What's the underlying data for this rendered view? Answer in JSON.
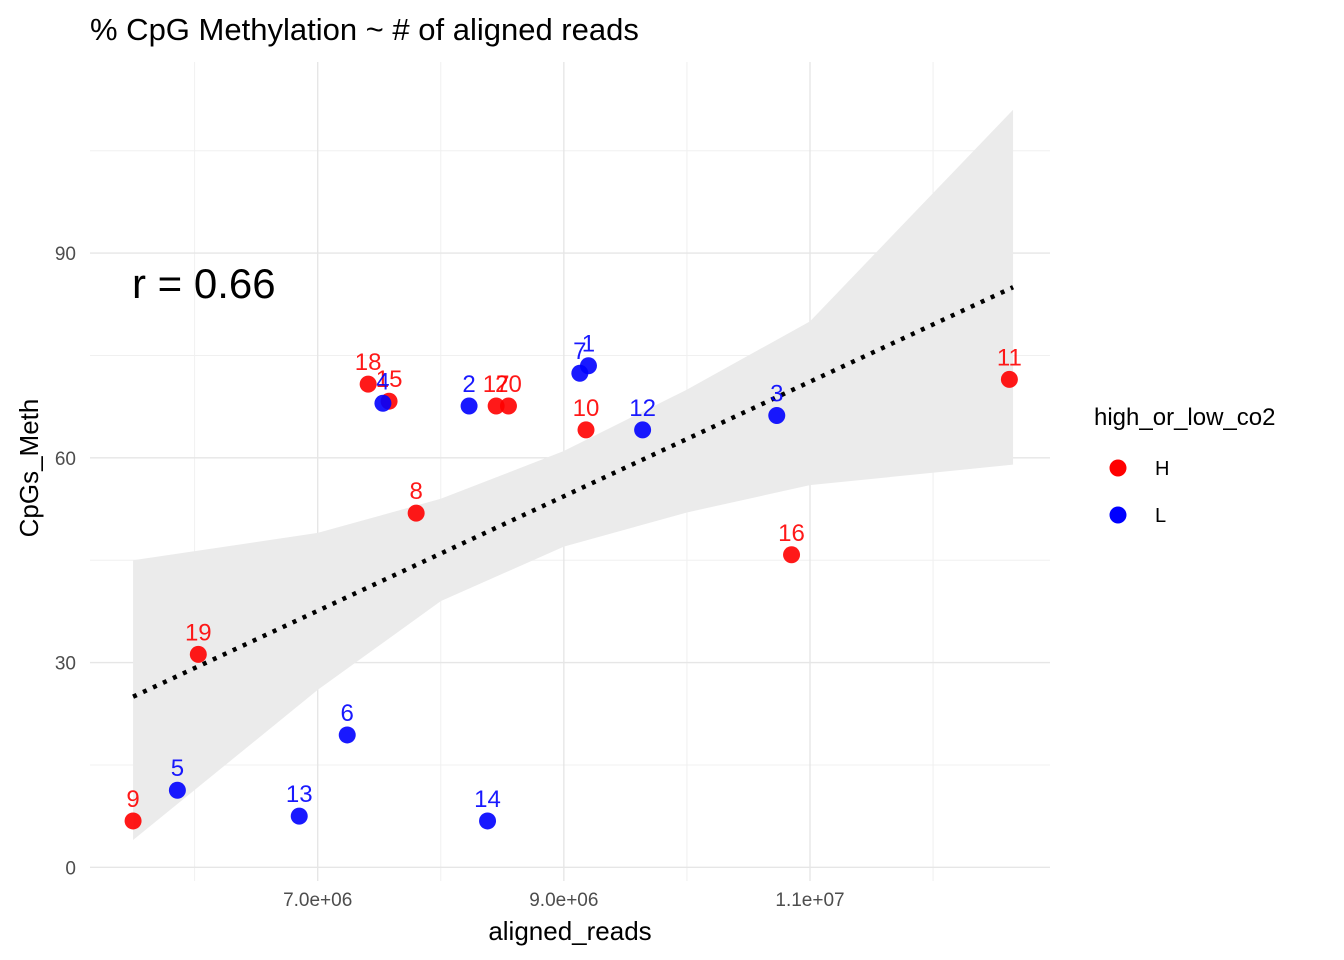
{
  "chart_data": {
    "type": "scatter",
    "title": "% CpG Methylation ~ # of aligned reads",
    "xlabel": "aligned_reads",
    "ylabel": "CpGs_Meth",
    "xlim": [
      5150000,
      12950000
    ],
    "ylim": [
      -2,
      118
    ],
    "x_ticks": [
      7000000,
      9000000,
      11000000
    ],
    "x_tick_labels": [
      "7.0e+06",
      "9.0e+06",
      "1.1e+07"
    ],
    "x_minor_ticks": [
      6000000,
      8000000,
      10000000,
      12000000
    ],
    "y_ticks": [
      0,
      30,
      60,
      90
    ],
    "y_tick_labels": [
      "0",
      "30",
      "60",
      "90"
    ],
    "y_minor_ticks": [
      15,
      45,
      75,
      105
    ],
    "grid": true,
    "annotation": "r = 0.66",
    "legend": {
      "title": "high_or_low_co2",
      "placement": "right",
      "entries": [
        {
          "label": "H",
          "color": "#ff0000"
        },
        {
          "label": "L",
          "color": "#0000ff"
        }
      ]
    },
    "regression": {
      "style": "dotted",
      "color": "#000000",
      "x": [
        5500000,
        12650000
      ],
      "y": [
        25,
        85
      ],
      "ci_band": {
        "color": "#ebebeb",
        "x": [
          5500000,
          7000000,
          8000000,
          9000000,
          10000000,
          11000000,
          12650000
        ],
        "upper": [
          45,
          49,
          54,
          61,
          70,
          80,
          111
        ],
        "lower": [
          4,
          26,
          39,
          47,
          52,
          56,
          59
        ]
      }
    },
    "series": [
      {
        "name": "H",
        "color": "#ff0000",
        "points": [
          {
            "label": "18",
            "x": 7410000,
            "y": 70.8
          },
          {
            "label": "15",
            "x": 7580000,
            "y": 68.3
          },
          {
            "label": "17",
            "x": 8450000,
            "y": 67.6
          },
          {
            "label": "20",
            "x": 8550000,
            "y": 67.6
          },
          {
            "label": "10",
            "x": 9180000,
            "y": 64.1
          },
          {
            "label": "11",
            "x": 12620000,
            "y": 71.5
          },
          {
            "label": "16",
            "x": 10850000,
            "y": 45.8
          },
          {
            "label": "8",
            "x": 7800000,
            "y": 51.9
          },
          {
            "label": "19",
            "x": 6030000,
            "y": 31.2
          },
          {
            "label": "9",
            "x": 5500000,
            "y": 6.8
          }
        ]
      },
      {
        "name": "L",
        "color": "#0000ff",
        "points": [
          {
            "label": "4",
            "x": 7530000,
            "y": 68.0
          },
          {
            "label": "2",
            "x": 8230000,
            "y": 67.6
          },
          {
            "label": "7",
            "x": 9130000,
            "y": 72.4
          },
          {
            "label": "1",
            "x": 9200000,
            "y": 73.5
          },
          {
            "label": "12",
            "x": 9640000,
            "y": 64.1
          },
          {
            "label": "3",
            "x": 10730000,
            "y": 66.2
          },
          {
            "label": "6",
            "x": 7240000,
            "y": 19.4
          },
          {
            "label": "5",
            "x": 5860000,
            "y": 11.3
          },
          {
            "label": "13",
            "x": 6850000,
            "y": 7.5
          },
          {
            "label": "14",
            "x": 8380000,
            "y": 6.8
          }
        ]
      }
    ]
  }
}
